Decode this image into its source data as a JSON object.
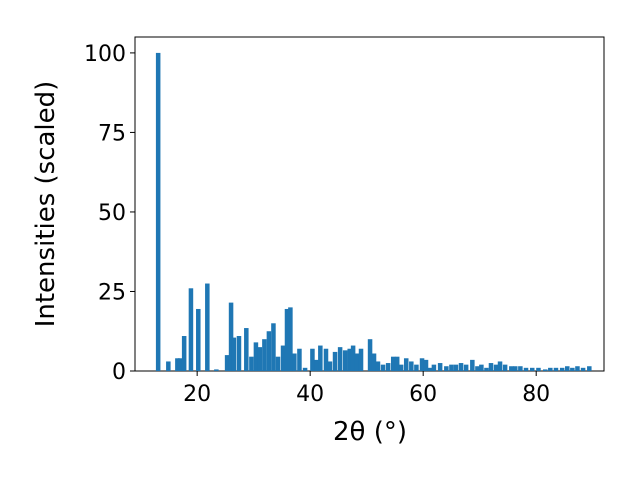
{
  "chart_data": {
    "type": "bar",
    "xlabel": "2θ (°)",
    "ylabel": "Intensities (scaled)",
    "color": "#1f77b4",
    "x": [
      13.1,
      14.9,
      16.5,
      17.0,
      17.7,
      18.9,
      20.2,
      21.8,
      23.4,
      25.3,
      26.0,
      26.5,
      27.4,
      28.7,
      29.6,
      30.4,
      31.1,
      31.9,
      32.7,
      33.5,
      34.3,
      35.2,
      35.9,
      36.5,
      37.2,
      38.1,
      39.1,
      40.4,
      41.1,
      41.8,
      42.8,
      43.5,
      44.4,
      45.3,
      46.2,
      47.0,
      47.6,
      48.3,
      49.0,
      50.6,
      51.3,
      52.0,
      52.9,
      53.8,
      54.7,
      55.4,
      56.1,
      57.0,
      57.9,
      58.8,
      59.8,
      60.5,
      61.2,
      61.9,
      63.0,
      64.1,
      65.0,
      65.8,
      66.7,
      67.6,
      68.7,
      69.6,
      70.3,
      71.2,
      72.0,
      72.9,
      73.6,
      74.5,
      75.6,
      76.3,
      77.2,
      78.2,
      79.3,
      80.4,
      81.6,
      82.5,
      83.5,
      84.6,
      85.5,
      86.4,
      87.3,
      88.3,
      89.4
    ],
    "values": [
      100,
      3,
      4,
      4,
      11,
      26,
      19.5,
      27.5,
      0.5,
      5,
      21.5,
      10.5,
      11,
      13.5,
      4.5,
      9,
      7.5,
      10,
      12.5,
      15,
      4.5,
      8,
      19.5,
      20,
      5.5,
      7,
      1,
      7,
      3.5,
      8,
      7,
      3,
      6,
      7.5,
      6.5,
      7,
      8,
      5.5,
      7,
      10,
      5.5,
      3,
      2,
      2.5,
      4.5,
      4.5,
      2,
      4,
      3,
      2,
      4,
      3.5,
      1,
      2,
      2.5,
      1.5,
      2,
      2,
      2.5,
      2,
      3.5,
      1.5,
      2,
      1,
      2.5,
      2,
      3,
      2,
      1.5,
      1.5,
      1.5,
      1,
      1,
      1,
      0.5,
      1,
      1,
      1,
      1.5,
      1,
      1.5,
      1,
      1.5
    ],
    "xlim": [
      9,
      92
    ],
    "ylim": [
      0,
      105
    ],
    "xticks": [
      20,
      40,
      60,
      80
    ],
    "yticks": [
      0,
      25,
      50,
      75,
      100
    ]
  }
}
